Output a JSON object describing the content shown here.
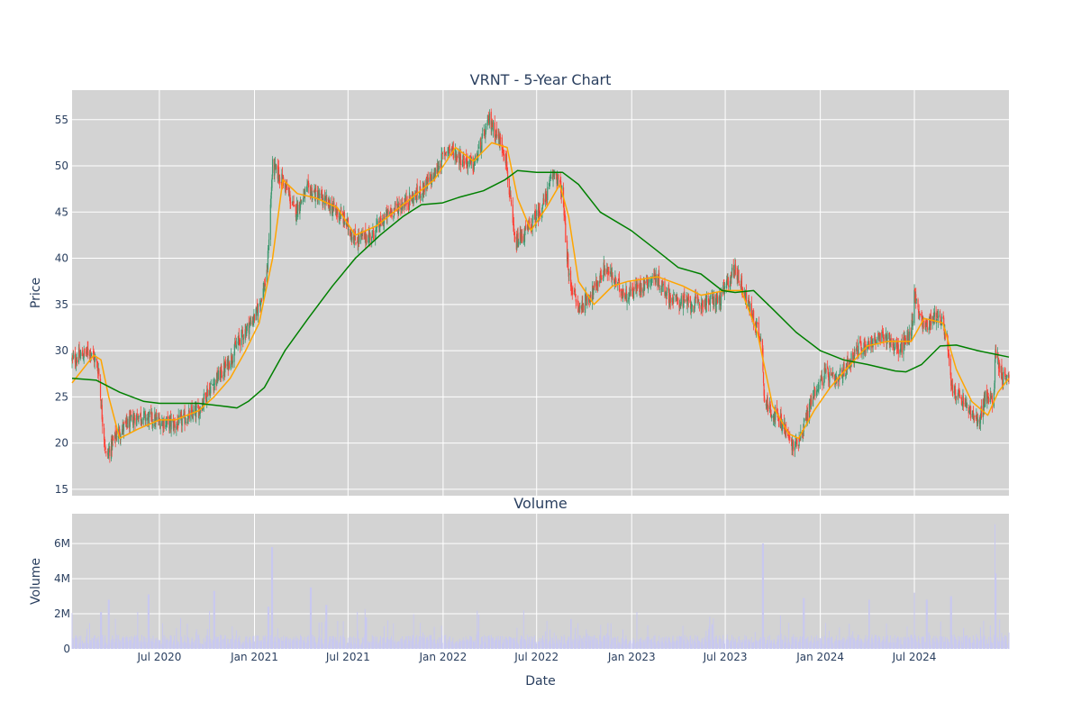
{
  "chart_data": [
    {
      "type": "candlestick",
      "title": "VRNT - 5-Year Chart",
      "ylabel": "Price",
      "ylim": [
        14.3,
        58.2
      ],
      "yticks": [
        15,
        20,
        25,
        30,
        35,
        40,
        45,
        50,
        55
      ],
      "xlim": [
        "2020-01-14",
        "2024-12-31"
      ],
      "xticks": [
        {
          "date": "2020-07-01",
          "label": "Jul 2020"
        },
        {
          "date": "2021-01-01",
          "label": "Jan 2021"
        },
        {
          "date": "2021-07-01",
          "label": "Jul 2021"
        },
        {
          "date": "2022-01-01",
          "label": "Jan 2022"
        },
        {
          "date": "2022-07-01",
          "label": "Jul 2022"
        },
        {
          "date": "2023-01-01",
          "label": "Jan 2023"
        },
        {
          "date": "2023-07-01",
          "label": "Jul 2023"
        },
        {
          "date": "2024-01-01",
          "label": "Jan 2024"
        },
        {
          "date": "2024-07-01",
          "label": "Jul 2024"
        }
      ],
      "grid": true,
      "colors": {
        "up": "#3d9970",
        "down": "#ff4136",
        "ma_short": "#ffa500",
        "ma_long": "#008000",
        "plot_bg": "#d3d3d3"
      },
      "price_path": [
        [
          "2020-01-14",
          29.0
        ],
        [
          "2020-02-20",
          30.0
        ],
        [
          "2020-03-05",
          28.0
        ],
        [
          "2020-03-12",
          23.0
        ],
        [
          "2020-03-20",
          18.5
        ],
        [
          "2020-04-10",
          21.0
        ],
        [
          "2020-05-20",
          23.0
        ],
        [
          "2020-06-20",
          22.5
        ],
        [
          "2020-08-01",
          22.0
        ],
        [
          "2020-09-15",
          23.5
        ],
        [
          "2020-10-01",
          25.5
        ],
        [
          "2020-11-10",
          28.5
        ],
        [
          "2020-12-01",
          31.0
        ],
        [
          "2021-01-05",
          34.0
        ],
        [
          "2021-01-25",
          38.0
        ],
        [
          "2021-02-05",
          50.0
        ],
        [
          "2021-03-01",
          48.0
        ],
        [
          "2021-03-20",
          45.0
        ],
        [
          "2021-04-15",
          47.5
        ],
        [
          "2021-05-20",
          46.0
        ],
        [
          "2021-06-20",
          44.5
        ],
        [
          "2021-07-15",
          42.0
        ],
        [
          "2021-08-15",
          42.5
        ],
        [
          "2021-09-20",
          45.0
        ],
        [
          "2021-11-15",
          47.0
        ],
        [
          "2021-12-15",
          49.0
        ],
        [
          "2022-01-10",
          52.0
        ],
        [
          "2022-02-01",
          51.0
        ],
        [
          "2022-03-01",
          50.0
        ],
        [
          "2022-04-01",
          55.0
        ],
        [
          "2022-05-01",
          51.5
        ],
        [
          "2022-05-20",
          41.5
        ],
        [
          "2022-06-20",
          43.5
        ],
        [
          "2022-07-15",
          46.0
        ],
        [
          "2022-08-05",
          49.5
        ],
        [
          "2022-08-20",
          47.0
        ],
        [
          "2022-09-01",
          38.0
        ],
        [
          "2022-09-20",
          34.5
        ],
        [
          "2022-10-20",
          36.5
        ],
        [
          "2022-11-10",
          39.0
        ],
        [
          "2022-12-20",
          36.0
        ],
        [
          "2023-02-15",
          38.0
        ],
        [
          "2023-03-20",
          35.5
        ],
        [
          "2023-05-01",
          35.0
        ],
        [
          "2023-06-20",
          35.5
        ],
        [
          "2023-07-20",
          39.0
        ],
        [
          "2023-08-15",
          35.0
        ],
        [
          "2023-09-10",
          31.0
        ],
        [
          "2023-09-15",
          24.5
        ],
        [
          "2023-10-20",
          22.0
        ],
        [
          "2023-11-10",
          19.5
        ],
        [
          "2023-11-25",
          21.0
        ],
        [
          "2023-12-20",
          25.5
        ],
        [
          "2024-01-10",
          27.5
        ],
        [
          "2024-02-01",
          26.5
        ],
        [
          "2024-03-10",
          30.0
        ],
        [
          "2024-04-10",
          31.0
        ],
        [
          "2024-05-10",
          31.5
        ],
        [
          "2024-06-01",
          30.0
        ],
        [
          "2024-06-25",
          32.0
        ],
        [
          "2024-07-01",
          36.0
        ],
        [
          "2024-07-20",
          32.5
        ],
        [
          "2024-08-15",
          34.0
        ],
        [
          "2024-09-01",
          32.0
        ],
        [
          "2024-09-10",
          26.0
        ],
        [
          "2024-10-10",
          24.0
        ],
        [
          "2024-11-01",
          22.0
        ],
        [
          "2024-11-15",
          25.0
        ],
        [
          "2024-12-01",
          24.5
        ],
        [
          "2024-12-05",
          30.0
        ],
        [
          "2024-12-20",
          27.0
        ],
        [
          "2024-12-31",
          27.5
        ]
      ],
      "moving_averages": [
        {
          "key": "ma_short",
          "points": [
            [
              "2020-01-14",
              26.5
            ],
            [
              "2020-02-25",
              29.5
            ],
            [
              "2020-03-10",
              29.0
            ],
            [
              "2020-03-25",
              25.0
            ],
            [
              "2020-04-15",
              20.5
            ],
            [
              "2020-05-20",
              21.5
            ],
            [
              "2020-07-01",
              22.5
            ],
            [
              "2020-08-01",
              22.5
            ],
            [
              "2020-09-15",
              23.5
            ],
            [
              "2020-10-15",
              25.0
            ],
            [
              "2020-11-15",
              27.0
            ],
            [
              "2020-12-15",
              30.0
            ],
            [
              "2021-01-10",
              33.0
            ],
            [
              "2021-02-05",
              40.0
            ],
            [
              "2021-02-25",
              48.5
            ],
            [
              "2021-03-25",
              47.0
            ],
            [
              "2021-05-01",
              46.5
            ],
            [
              "2021-06-10",
              45.5
            ],
            [
              "2021-07-15",
              42.5
            ],
            [
              "2021-08-25",
              43.5
            ],
            [
              "2021-10-20",
              46.0
            ],
            [
              "2021-12-15",
              48.5
            ],
            [
              "2022-01-25",
              52.0
            ],
            [
              "2022-03-01",
              50.5
            ],
            [
              "2022-04-05",
              52.5
            ],
            [
              "2022-05-05",
              52.0
            ],
            [
              "2022-05-25",
              46.5
            ],
            [
              "2022-06-20",
              43.0
            ],
            [
              "2022-07-20",
              45.5
            ],
            [
              "2022-08-15",
              48.0
            ],
            [
              "2022-09-01",
              44.5
            ],
            [
              "2022-09-20",
              37.5
            ],
            [
              "2022-10-20",
              35.0
            ],
            [
              "2022-11-25",
              37.0
            ],
            [
              "2022-12-25",
              37.5
            ],
            [
              "2023-02-20",
              38.0
            ],
            [
              "2023-04-10",
              37.0
            ],
            [
              "2023-05-15",
              36.0
            ],
            [
              "2023-07-01",
              36.5
            ],
            [
              "2023-08-01",
              36.5
            ],
            [
              "2023-09-01",
              32.0
            ],
            [
              "2023-10-01",
              24.0
            ],
            [
              "2023-11-01",
              21.0
            ],
            [
              "2023-11-20",
              20.5
            ],
            [
              "2023-12-20",
              23.5
            ],
            [
              "2024-01-20",
              26.0
            ],
            [
              "2024-02-20",
              28.0
            ],
            [
              "2024-04-01",
              30.5
            ],
            [
              "2024-05-10",
              31.0
            ],
            [
              "2024-06-25",
              31.0
            ],
            [
              "2024-07-20",
              33.5
            ],
            [
              "2024-08-25",
              33.0
            ],
            [
              "2024-09-20",
              28.0
            ],
            [
              "2024-10-20",
              24.5
            ],
            [
              "2024-11-20",
              23.0
            ],
            [
              "2024-12-10",
              25.5
            ],
            [
              "2024-12-31",
              27.0
            ]
          ]
        },
        {
          "key": "ma_long",
          "points": [
            [
              "2020-01-14",
              27.0
            ],
            [
              "2020-03-01",
              26.8
            ],
            [
              "2020-04-15",
              25.5
            ],
            [
              "2020-06-01",
              24.5
            ],
            [
              "2020-07-01",
              24.3
            ],
            [
              "2020-09-15",
              24.3
            ],
            [
              "2020-11-01",
              24.0
            ],
            [
              "2020-11-28",
              23.8
            ],
            [
              "2020-12-20",
              24.5
            ],
            [
              "2021-01-20",
              26.0
            ],
            [
              "2021-03-01",
              30.0
            ],
            [
              "2021-04-15",
              33.5
            ],
            [
              "2021-06-01",
              37.0
            ],
            [
              "2021-07-15",
              40.0
            ],
            [
              "2021-09-01",
              42.5
            ],
            [
              "2021-10-15",
              44.5
            ],
            [
              "2021-11-20",
              45.8
            ],
            [
              "2021-12-31",
              46.0
            ],
            [
              "2022-02-01",
              46.6
            ],
            [
              "2022-03-20",
              47.3
            ],
            [
              "2022-05-01",
              48.5
            ],
            [
              "2022-05-25",
              49.5
            ],
            [
              "2022-07-01",
              49.3
            ],
            [
              "2022-08-20",
              49.3
            ],
            [
              "2022-09-20",
              48.0
            ],
            [
              "2022-11-01",
              45.0
            ],
            [
              "2022-12-31",
              43.0
            ],
            [
              "2023-02-15",
              41.0
            ],
            [
              "2023-04-01",
              39.0
            ],
            [
              "2023-05-15",
              38.3
            ],
            [
              "2023-06-25",
              36.5
            ],
            [
              "2023-07-20",
              36.3
            ],
            [
              "2023-08-25",
              36.5
            ],
            [
              "2023-10-01",
              34.5
            ],
            [
              "2023-11-15",
              32.0
            ],
            [
              "2024-01-01",
              30.0
            ],
            [
              "2024-02-15",
              29.0
            ],
            [
              "2024-04-01",
              28.5
            ],
            [
              "2024-05-25",
              27.8
            ],
            [
              "2024-06-15",
              27.7
            ],
            [
              "2024-07-15",
              28.5
            ],
            [
              "2024-08-20",
              30.5
            ],
            [
              "2024-09-20",
              30.6
            ],
            [
              "2024-11-01",
              30.0
            ],
            [
              "2024-12-31",
              29.3
            ]
          ]
        }
      ]
    },
    {
      "type": "bar",
      "title": "Volume",
      "xlabel": "Date",
      "ylabel": "Volume",
      "ylim": [
        0,
        7700000
      ],
      "yticks": [
        {
          "value": 0,
          "label": "0"
        },
        {
          "value": 2000000,
          "label": "2M"
        },
        {
          "value": 4000000,
          "label": "4M"
        },
        {
          "value": 6000000,
          "label": "6M"
        }
      ],
      "bar_color": "#c8c8f0",
      "baseline_volume": 650000,
      "spikes": [
        [
          "2020-03-10",
          2100000
        ],
        [
          "2020-03-25",
          2800000
        ],
        [
          "2020-06-10",
          3100000
        ],
        [
          "2020-10-15",
          3300000
        ],
        [
          "2021-02-04",
          5800000
        ],
        [
          "2021-01-28",
          2400000
        ],
        [
          "2021-04-20",
          3500000
        ],
        [
          "2021-05-20",
          2500000
        ],
        [
          "2021-08-05",
          1800000
        ],
        [
          "2022-06-05",
          2200000
        ],
        [
          "2022-09-05",
          1700000
        ],
        [
          "2023-06-05",
          1400000
        ],
        [
          "2023-09-12",
          6000000
        ],
        [
          "2023-10-15",
          1900000
        ],
        [
          "2023-11-30",
          2900000
        ],
        [
          "2024-04-05",
          2800000
        ],
        [
          "2024-06-30",
          3200000
        ],
        [
          "2024-07-25",
          2800000
        ],
        [
          "2024-09-10",
          3000000
        ],
        [
          "2024-12-05",
          7100000
        ],
        [
          "2024-12-06",
          4300000
        ]
      ]
    }
  ]
}
